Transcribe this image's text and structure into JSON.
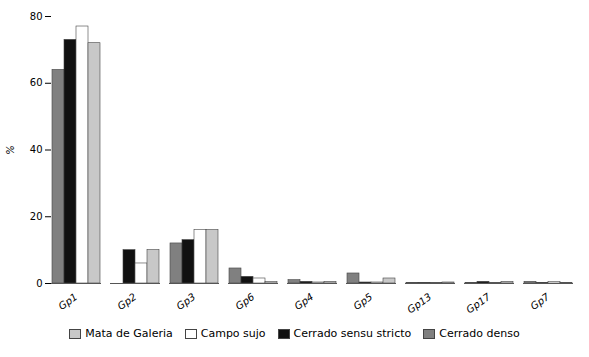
{
  "chart_data": {
    "type": "bar",
    "categories": [
      "Gp1",
      "Gp2",
      "Gp3",
      "Gp6",
      "Gp4",
      "Gp5",
      "Gp13",
      "Gp17",
      "Gp7"
    ],
    "series": [
      {
        "name": "Cerrado denso",
        "color": "#808080",
        "values": [
          64,
          0,
          12,
          4.5,
          1.0,
          3.0,
          0.2,
          0.2,
          0.5
        ]
      },
      {
        "name": "Cerrado sensu stricto",
        "color": "#111111",
        "values": [
          73,
          10,
          13,
          2.0,
          0.5,
          0.3,
          0.2,
          0.5,
          0.2
        ]
      },
      {
        "name": "Campo sujo",
        "color": "#ffffff",
        "values": [
          77,
          6,
          16,
          1.5,
          0.3,
          0.3,
          0.2,
          0.2,
          0.5
        ]
      },
      {
        "name": "Mata de Galeria",
        "color": "#c8c8c8",
        "values": [
          72,
          10,
          16,
          0.4,
          0.5,
          1.5,
          0.3,
          0.5,
          0.2
        ]
      }
    ],
    "ylabel": "%",
    "ylim": [
      0,
      80
    ],
    "yticks": [
      0,
      20,
      40,
      60,
      80
    ],
    "grid": false,
    "legend": "bottom"
  }
}
